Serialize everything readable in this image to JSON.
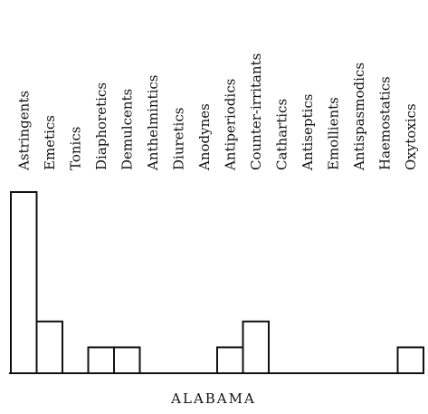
{
  "chart_data": {
    "type": "bar",
    "title": "ALABAMA",
    "categories": [
      "Astringents",
      "Emetics",
      "Tonics",
      "Diaphoretics",
      "Demulcents",
      "Anthelmintics",
      "Diuretics",
      "Anodynes",
      "Antiperiodics",
      "Counter-irritants",
      "Cathartics",
      "Antiseptics",
      "Emollients",
      "Antispasmodics",
      "Haemostatics",
      "Oxytoxics"
    ],
    "values": [
      7,
      2,
      0,
      1,
      1,
      0,
      0,
      0,
      1,
      2,
      0,
      0,
      0,
      0,
      0,
      1
    ],
    "ylim": [
      0,
      7
    ],
    "xlabel": "",
    "ylabel": "",
    "grid": false,
    "bar_color": "#ffffff",
    "edge_color": "#111111"
  }
}
